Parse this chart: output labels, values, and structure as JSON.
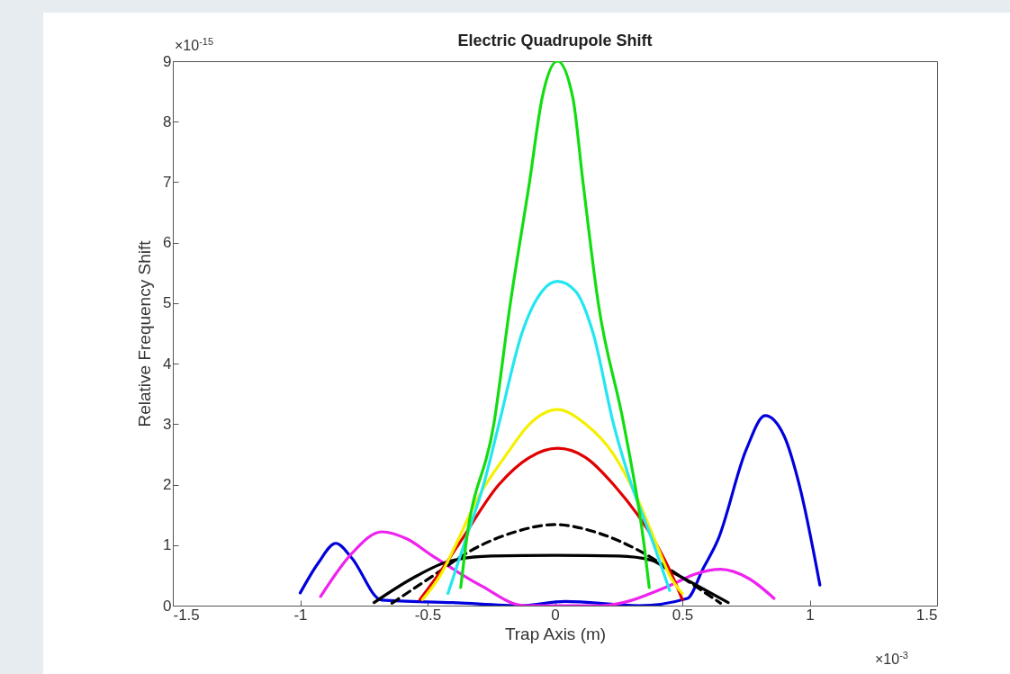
{
  "chart_data": {
    "type": "line",
    "title": "Electric Quadrupole Shift",
    "xlabel": "Trap Axis (m)",
    "ylabel": "Relative Frequency Shift",
    "annotations": [
      "×10$^{-15}$",
      "×10$^{-3}$"
    ],
    "xlim": [
      -1.5,
      1.5
    ],
    "xticks": [
      -1.5,
      -1,
      -0.5,
      0,
      0.5,
      1,
      1.5
    ],
    "ylim": [
      0,
      9
    ],
    "yticks": [
      0,
      1,
      2,
      3,
      4,
      5,
      6,
      7,
      8,
      9
    ],
    "grid": false,
    "legend": false,
    "marker": "none",
    "line_style": "solid",
    "series": [
      {
        "color": "#0000dd",
        "x": [
          -1.0,
          -0.93,
          -0.86,
          -0.8,
          -0.68,
          -0.4,
          -0.13,
          0.04,
          0.33,
          0.52,
          0.58,
          0.64,
          0.75,
          0.825,
          0.9,
          0.96,
          1.04
        ],
        "values": [
          0.21,
          0.7,
          1.03,
          0.8,
          0.09,
          0.05,
          0.0,
          0.07,
          0.0,
          0.12,
          0.6,
          1.09,
          2.57,
          3.14,
          2.8,
          1.98,
          0.34
        ]
      },
      {
        "color": "#ee22ee",
        "x": [
          -0.92,
          -0.8,
          -0.68,
          -0.58,
          -0.48,
          -0.29,
          -0.12,
          0.18,
          0.45,
          0.55,
          0.65,
          0.76,
          0.86
        ],
        "values": [
          0.15,
          0.85,
          1.22,
          1.1,
          0.82,
          0.33,
          0.0,
          0.0,
          0.33,
          0.52,
          0.6,
          0.45,
          0.12
        ]
      },
      {
        "color": "#000000",
        "x": [
          -0.71,
          -0.56,
          -0.41,
          -0.25,
          0,
          0.25,
          0.38,
          0.45,
          0.55,
          0.68
        ],
        "values": [
          0.05,
          0.45,
          0.74,
          0.82,
          0.83,
          0.82,
          0.75,
          0.58,
          0.35,
          0.05
        ]
      },
      {
        "color": "#000000",
        "line_style": "dashed",
        "x": [
          -0.64,
          -0.48,
          -0.33,
          -0.17,
          0,
          0.17,
          0.33,
          0.49,
          0.65
        ],
        "values": [
          0.04,
          0.49,
          0.91,
          1.2,
          1.34,
          1.2,
          0.91,
          0.49,
          0.04
        ]
      },
      {
        "color": "#e00000",
        "x": [
          -0.53,
          -0.46,
          -0.38,
          -0.22,
          -0.1,
          0.01,
          0.12,
          0.23,
          0.4,
          0.46,
          0.5
        ],
        "values": [
          0.1,
          0.5,
          1,
          2,
          2.45,
          2.6,
          2.45,
          2,
          1,
          0.5,
          0.1
        ]
      },
      {
        "color": "#f5f000",
        "x": [
          -0.52,
          -0.45,
          -0.39,
          -0.3,
          -0.19,
          -0.1,
          0.01,
          0.12,
          0.23,
          0.32,
          0.4,
          0.45,
          0.5
        ],
        "values": [
          0.1,
          0.5,
          1,
          1.8,
          2.5,
          3.0,
          3.24,
          3.0,
          2.5,
          1.8,
          1,
          0.5,
          0.2
        ]
      },
      {
        "color": "#22e6f0",
        "x": [
          -0.42,
          -0.35,
          -0.28,
          -0.22,
          -0.13,
          -0.05,
          0.01,
          0.08,
          0.15,
          0.23,
          0.3,
          0.38,
          0.45
        ],
        "values": [
          0.2,
          1.1,
          2,
          3,
          4.5,
          5.2,
          5.36,
          5.2,
          4.5,
          3,
          2,
          1.1,
          0.25
        ]
      },
      {
        "color": "#11dd11",
        "x": [
          -0.37,
          -0.35,
          -0.24,
          -0.175,
          -0.1,
          -0.05,
          0.01,
          0.07,
          0.11,
          0.17,
          0.27,
          0.35,
          0.37
        ],
        "values": [
          0.3,
          1,
          3,
          5,
          7,
          8.4,
          9,
          8.4,
          7,
          5,
          3,
          1,
          0.3
        ]
      }
    ]
  }
}
